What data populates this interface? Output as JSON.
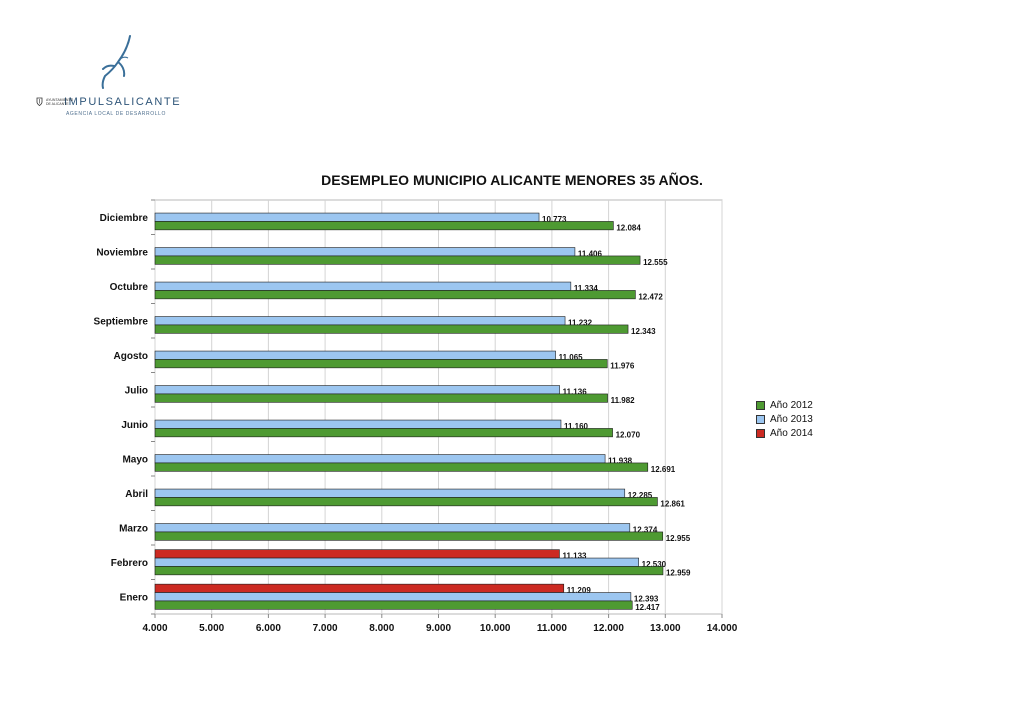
{
  "brand": {
    "name": "IMPULSALICANTE",
    "subtitle": "AGENCIA LOCAL DE DESARROLLO",
    "seal_text": "AYUNTAMIENTO\nDE ALICANTE"
  },
  "chart_data": {
    "type": "bar",
    "orientation": "horizontal",
    "title": "DESEMPLEO MUNICIPIO ALICANTE MENORES 35 AÑOS.",
    "categories": [
      "Diciembre",
      "Noviembre",
      "Octubre",
      "Septiembre",
      "Agosto",
      "Julio",
      "Junio",
      "Mayo",
      "Abril",
      "Marzo",
      "Febrero",
      "Enero"
    ],
    "series": [
      {
        "name": "Año 2014",
        "color": "#cc2a22",
        "values": [
          null,
          null,
          null,
          null,
          null,
          null,
          null,
          null,
          null,
          null,
          11133,
          11209
        ],
        "labels": [
          "",
          "",
          "",
          "",
          "",
          "",
          "",
          "",
          "",
          "",
          "11.133",
          "11.209"
        ]
      },
      {
        "name": "Año 2013",
        "color": "#9cc6f0",
        "values": [
          10773,
          11406,
          11334,
          11232,
          11065,
          11136,
          11160,
          11938,
          12285,
          12374,
          12530,
          12393
        ],
        "labels": [
          "10.773",
          "11.406",
          "11.334",
          "11.232",
          "11.065",
          "11.136",
          "11.160",
          "11.938",
          "12.285",
          "12.374",
          "12.530",
          "12.393"
        ]
      },
      {
        "name": "Año 2012",
        "color": "#4e9a32",
        "values": [
          12084,
          12555,
          12472,
          12343,
          11976,
          11982,
          12070,
          12691,
          12861,
          12955,
          12959,
          12417
        ],
        "labels": [
          "12.084",
          "12.555",
          "12.472",
          "12.343",
          "11.976",
          "11.982",
          "12.070",
          "12.691",
          "12.861",
          "12.955",
          "12.959",
          "12.417"
        ]
      }
    ],
    "xlim": [
      4000,
      14000
    ],
    "xticks": [
      4000,
      5000,
      6000,
      7000,
      8000,
      9000,
      10000,
      11000,
      12000,
      13000,
      14000
    ],
    "xtick_labels": [
      "4.000",
      "5.000",
      "6.000",
      "7.000",
      "8.000",
      "9.000",
      "10.000",
      "11.000",
      "12.000",
      "13.000",
      "14.000"
    ],
    "xlabel": "",
    "ylabel": "",
    "grid": true,
    "legend_position": "right",
    "legend_order": [
      "Año 2012",
      "Año 2013",
      "Año 2014"
    ]
  }
}
